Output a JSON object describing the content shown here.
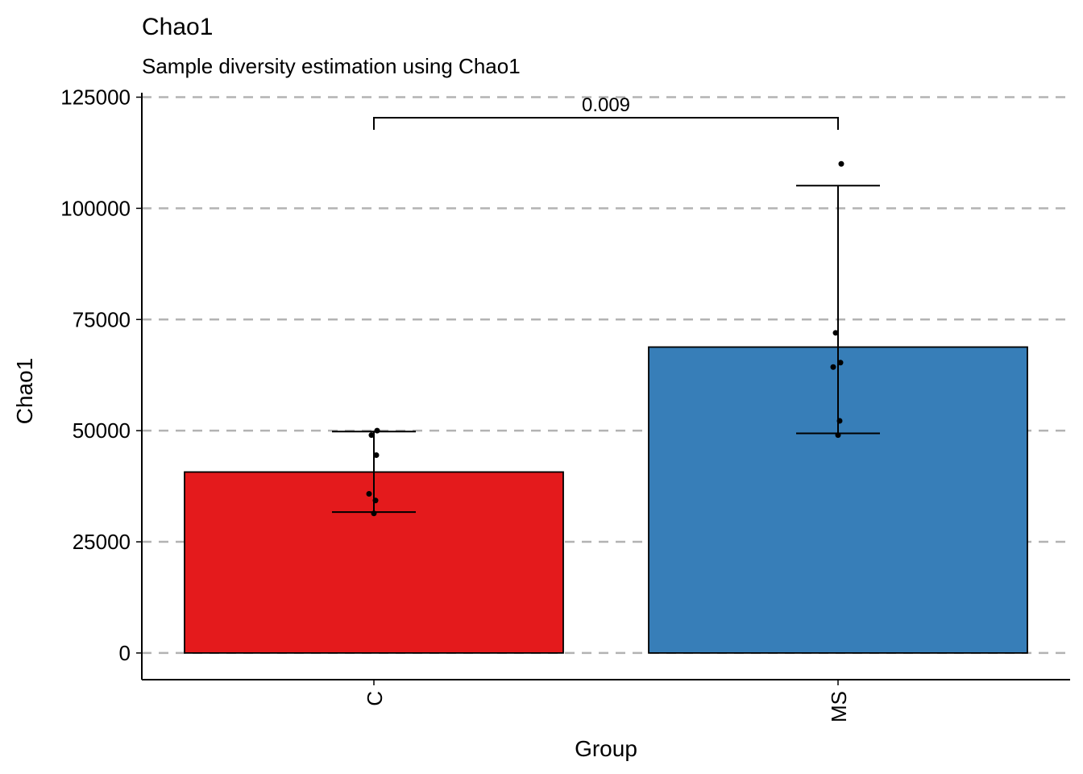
{
  "chart_data": {
    "type": "bar",
    "title": "Chao1",
    "subtitle": "Sample diversity estimation using Chao1",
    "xlabel": "Group",
    "ylabel": "Chao1",
    "categories": [
      "C",
      "MS"
    ],
    "values": [
      40700,
      68800
    ],
    "colors": [
      "#E41A1C",
      "#377EB8"
    ],
    "error_bars": [
      {
        "low": 31700,
        "high": 49800
      },
      {
        "low": 49400,
        "high": 105100
      }
    ],
    "points": [
      [
        50000,
        49000,
        44500,
        35800,
        34300,
        31400
      ],
      [
        110000,
        72000,
        65300,
        64300,
        52200,
        49000
      ]
    ],
    "ylim": [
      -6000,
      126000
    ],
    "yticks": [
      0,
      25000,
      50000,
      75000,
      100000,
      125000
    ],
    "ytick_labels": [
      "0",
      "25000",
      "50000",
      "75000",
      "100000",
      "125000"
    ],
    "grid": "horizontal dashed",
    "legend": "none",
    "comparison": {
      "from": "C",
      "to": "MS",
      "label": "0.009"
    }
  }
}
